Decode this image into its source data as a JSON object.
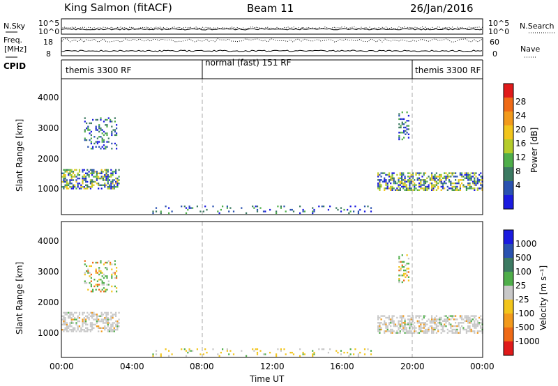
{
  "header": {
    "station": "King Salmon (fitACF)",
    "beam": "Beam 11",
    "date": "26/Jan/2016"
  },
  "status_strip": {
    "left_top": "N.Sky",
    "left_mid1": "Freq.",
    "left_mid2": "[MHz]",
    "left_bot": "CPID",
    "nsky_ticks": [
      "10^5",
      "10^0"
    ],
    "freq_ticks": [
      "18",
      "8"
    ],
    "right_top": "N.Search",
    "right_mid": "Nave",
    "nsearch_ticks": [
      "10^5",
      "10^0"
    ],
    "nave_ticks": [
      "60",
      "0"
    ],
    "cpid_segments": [
      {
        "label": "themis 3300 RF",
        "start_hour": 0,
        "end_hour": 8
      },
      {
        "label": "normal (fast) 151 RF",
        "start_hour": 8,
        "end_hour": 20
      },
      {
        "label": "themis 3300 RF",
        "start_hour": 20,
        "end_hour": 24
      }
    ]
  },
  "x_axis": {
    "label": "Time UT",
    "ticks": [
      "00:00",
      "04:00",
      "08:00",
      "12:00",
      "16:00",
      "20:00",
      "00:00"
    ]
  },
  "power_panel": {
    "ylabel": "Slant Range [km]",
    "yticks": [
      "1000",
      "2000",
      "3000",
      "4000"
    ],
    "colorbar_label": "Power [dB]",
    "colorbar_ticks": [
      "4",
      "8",
      "12",
      "16",
      "20",
      "24",
      "28"
    ],
    "colors": [
      "#1b1be0",
      "#2a52b0",
      "#3c7a62",
      "#4fae4a",
      "#b5cc2a",
      "#f2c51c",
      "#f29a1c",
      "#ef6a16",
      "#e01a1a"
    ]
  },
  "velocity_panel": {
    "ylabel": "Slant Range [km]",
    "yticks": [
      "1000",
      "2000",
      "3000",
      "4000"
    ],
    "colorbar_label": "Velocity [m s⁻¹]",
    "colorbar_ticks": [
      "1000",
      "500",
      "100",
      "25",
      "-25",
      "-100",
      "-500",
      "-1000"
    ],
    "colors": [
      "#1b1be0",
      "#2a52b0",
      "#3c7a62",
      "#4fae4a",
      "#c8c8c8",
      "#f2c51c",
      "#f29a1c",
      "#ef6a16",
      "#e01a1a"
    ]
  },
  "chart_data": {
    "type": "heatmap",
    "title": "King Salmon (fitACF)",
    "xlabel": "Time UT",
    "ylabel": "Slant Range [km]",
    "xlim_hours": [
      0,
      24
    ],
    "ylim_km": [
      180,
      4600
    ],
    "features": [
      {
        "name": "early band",
        "start_hour": 0.0,
        "end_hour": 3.3,
        "range_km": [
          1000,
          1650
        ]
      },
      {
        "name": "early patch high",
        "start_hour": 1.3,
        "end_hour": 3.1,
        "range_km": [
          2300,
          3300
        ]
      },
      {
        "name": "late band",
        "start_hour": 18.0,
        "end_hour": 24.0,
        "range_km": [
          950,
          1550
        ]
      },
      {
        "name": "late patch high",
        "start_hour": 19.2,
        "end_hour": 19.8,
        "range_km": [
          2600,
          3500
        ]
      },
      {
        "name": "near range echoes",
        "start_hour": 5.0,
        "end_hour": 18.0,
        "range_km": [
          200,
          450
        ]
      }
    ]
  }
}
